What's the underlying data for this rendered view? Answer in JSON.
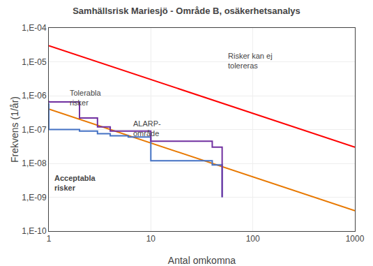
{
  "chart_data": {
    "type": "line",
    "title": "Samhällsrisk Mariesjö - Område B, osäkerhetsanalys",
    "xlabel": "Antal omkomna",
    "ylabel": "Frekvens (1/år)",
    "log": true,
    "grid": true,
    "xlim": [
      1,
      1000
    ],
    "ylim": [
      1e-10,
      0.0001
    ],
    "xticks": [
      1,
      10,
      100,
      1000
    ],
    "yticks": [
      {
        "value": 1e-10,
        "label": "1,E-10"
      },
      {
        "value": 1e-09,
        "label": "1,E-09"
      },
      {
        "value": 1e-08,
        "label": "1,E-08"
      },
      {
        "value": 1e-07,
        "label": "1,E-07"
      },
      {
        "value": 1e-06,
        "label": "1,E-06"
      },
      {
        "value": 1e-05,
        "label": "1,E-05"
      },
      {
        "value": 0.0001,
        "label": "1,E-04"
      }
    ],
    "series": [
      {
        "color": "#FF0000",
        "x": [
          1,
          1000
        ],
        "values": [
          3e-05,
          3e-08
        ]
      },
      {
        "color": "#E87800",
        "x": [
          1,
          1000
        ],
        "values": [
          4e-07,
          4e-10
        ]
      },
      {
        "color": "#4472C4",
        "x": [
          1,
          1,
          2,
          2,
          3,
          3,
          4,
          4,
          6,
          6,
          10,
          10,
          40,
          40,
          50,
          50
        ],
        "values": [
          6e-07,
          1e-07,
          1e-07,
          9e-08,
          9e-08,
          7.5e-08,
          7.5e-08,
          6.5e-08,
          6.5e-08,
          6e-08,
          6e-08,
          1.2e-08,
          1.2e-08,
          9e-09,
          9e-09,
          1e-09
        ]
      },
      {
        "color": "#7030A0",
        "x": [
          1,
          1,
          2,
          2,
          3,
          3,
          4,
          4,
          10,
          10,
          40,
          40,
          50,
          50
        ],
        "values": [
          7e-07,
          6.5e-07,
          6.5e-07,
          2.2e-07,
          2.2e-07,
          1.2e-07,
          1.2e-07,
          9e-08,
          9e-08,
          4.5e-08,
          4.5e-08,
          3e-08,
          3e-08,
          1e-09
        ]
      }
    ],
    "annotations": [
      {
        "x": 1.55,
        "y": 1.8e-06,
        "text": "Tolerabla\nrisker",
        "bold": false
      },
      {
        "x": 6.5,
        "y": 2.2e-07,
        "text": "ALARP-\nområde",
        "bold": false
      },
      {
        "x": 1.1,
        "y": 5.5e-09,
        "text": "Acceptabla\nrisker",
        "bold": true
      },
      {
        "x": 55,
        "y": 2.2e-05,
        "text": "Risker kan ej\ntolereras",
        "bold": false
      }
    ]
  }
}
